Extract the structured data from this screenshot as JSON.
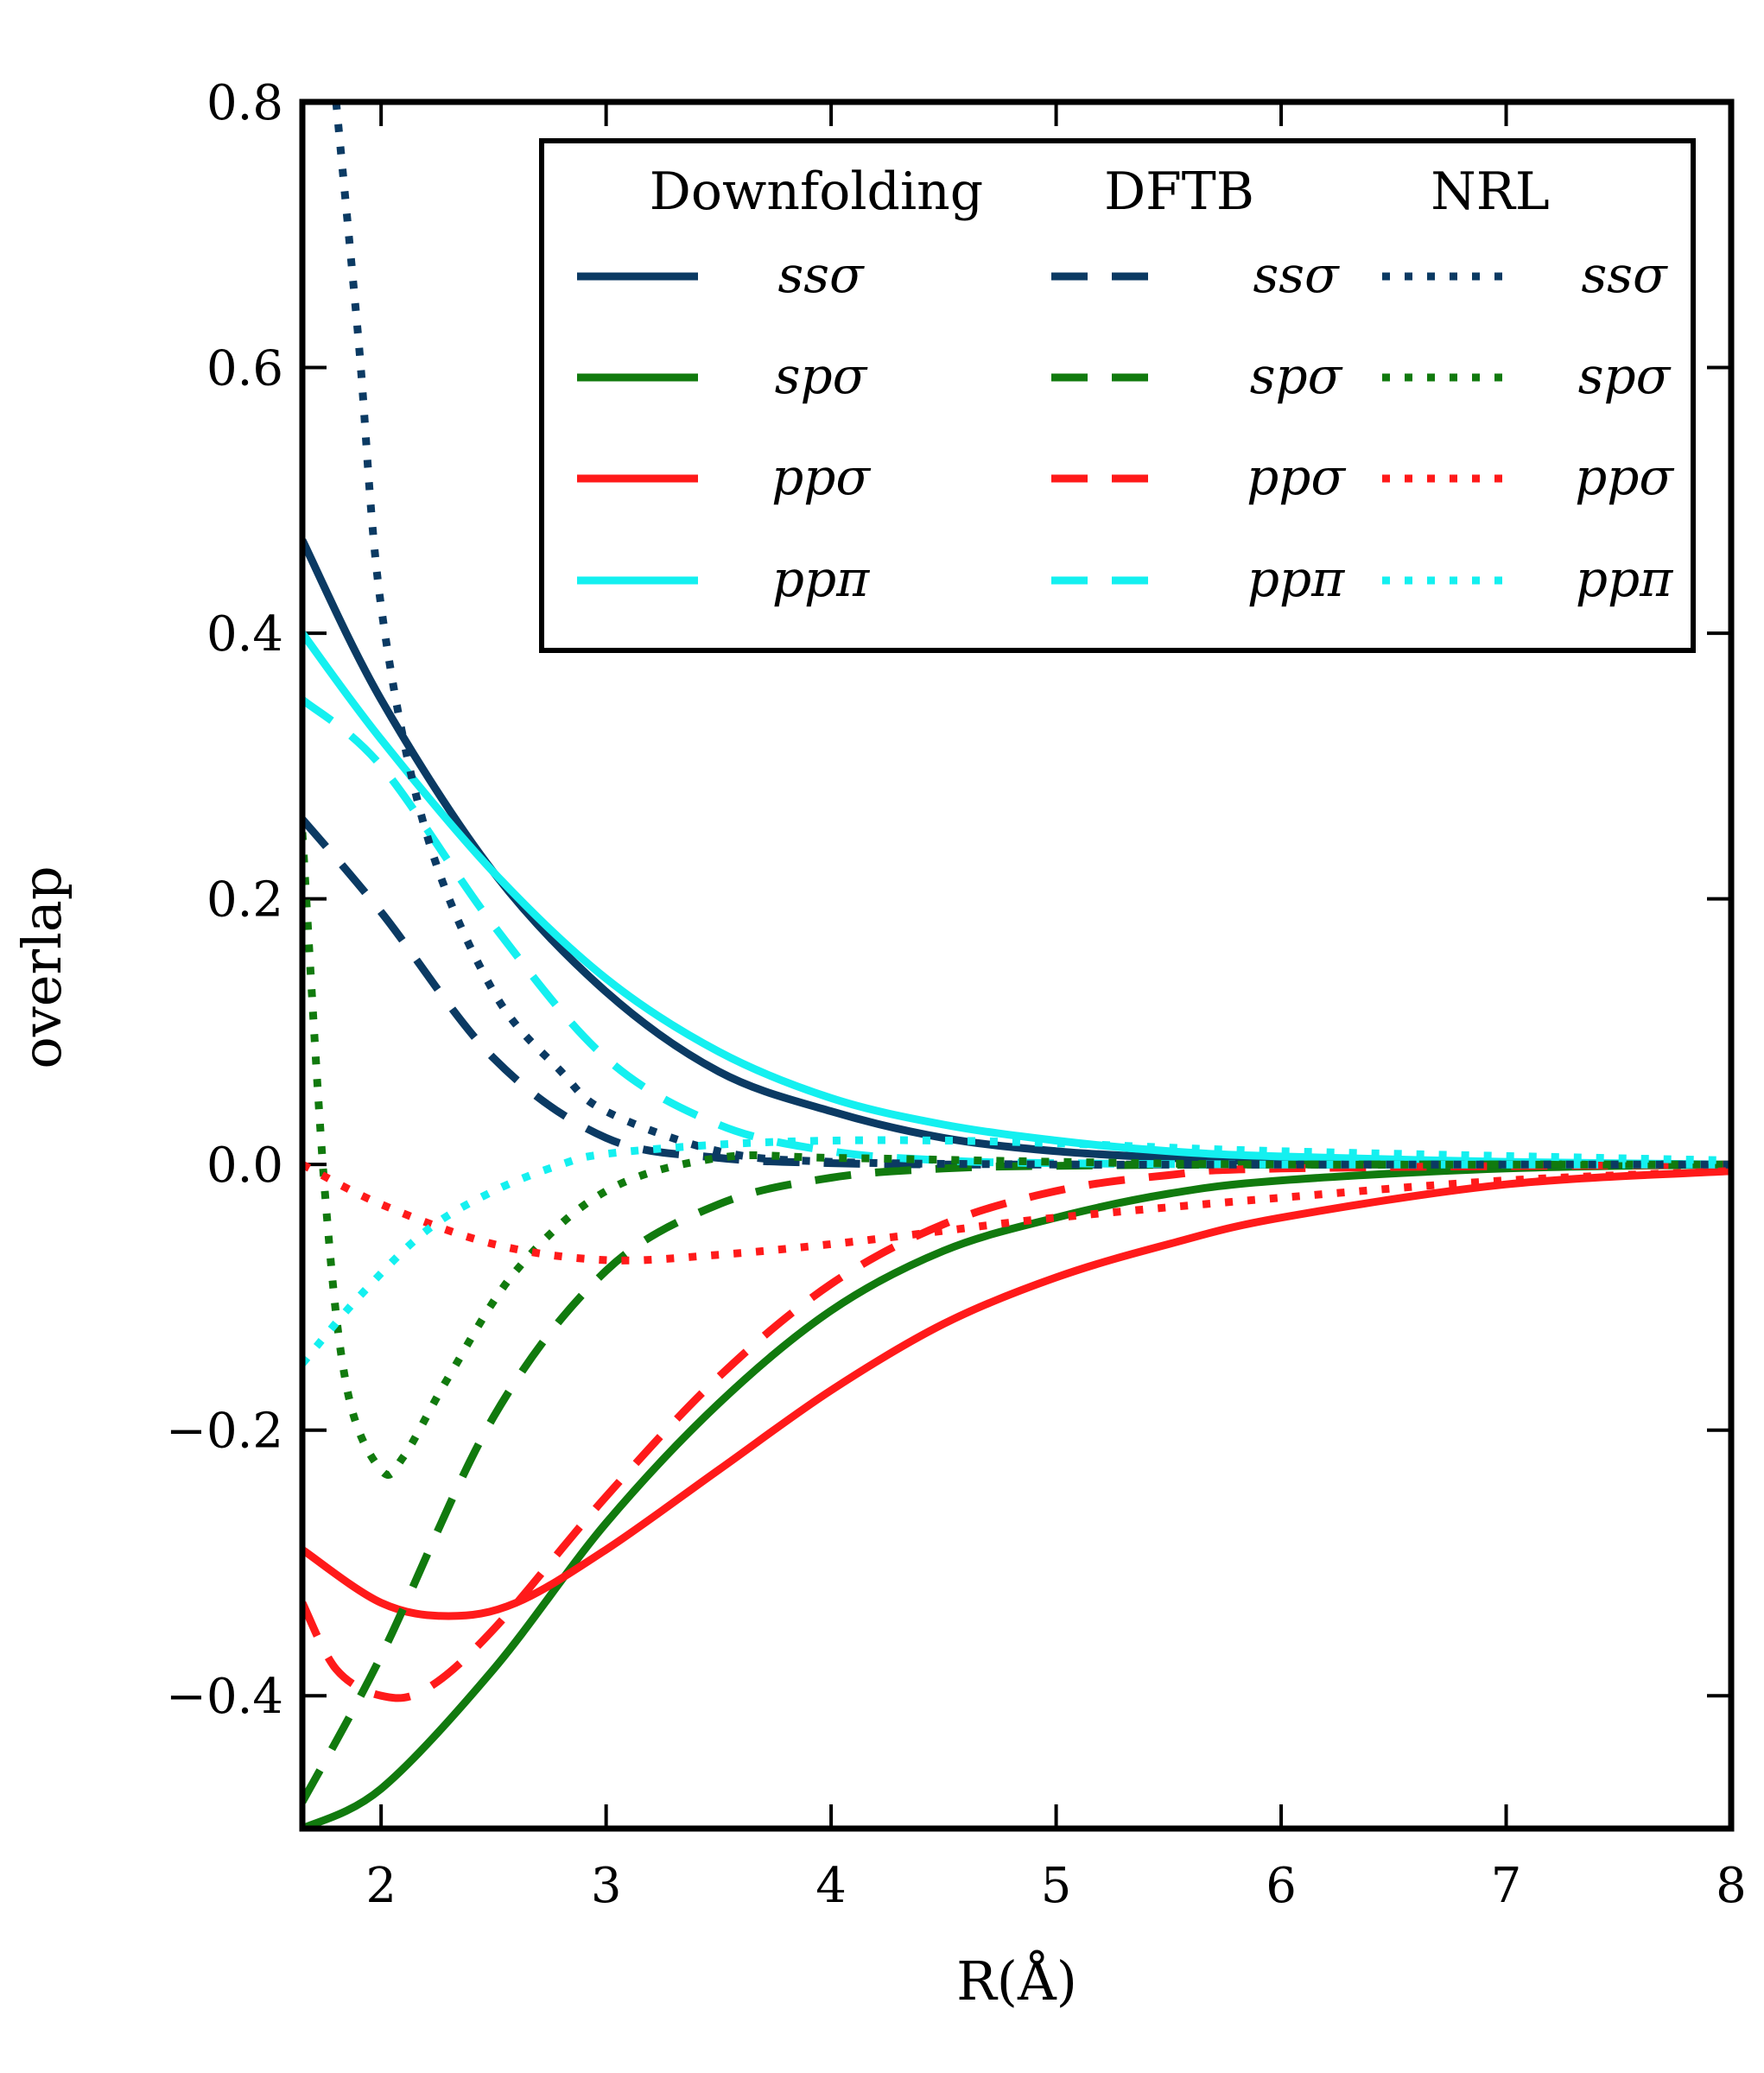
{
  "chart_data": {
    "type": "line",
    "xlabel": "R(Å)",
    "ylabel": "overlap",
    "xlim": [
      1.65,
      8
    ],
    "ylim": [
      -0.5,
      0.8
    ],
    "xticks": [
      "2",
      "3",
      "4",
      "5",
      "6",
      "7",
      "8"
    ],
    "yticks": [
      "0.8",
      "0.6",
      "0.4",
      "0.2",
      "0.0",
      "−0.2",
      "−0.4"
    ],
    "legend_placement": "top-right",
    "legend_groups": [
      "Downfolding",
      "DFTB",
      "NRL"
    ],
    "colors": {
      "ss": "#0b3a63",
      "sp": "#117a0e",
      "pp_sigma": "#ff1a1a",
      "pp_pi": "#14f0f0"
    },
    "series": [
      {
        "name": "ssσ",
        "group": "Downfolding",
        "style": "solid",
        "color": "#0b3a63",
        "x": [
          1.65,
          2.0,
          2.5,
          3.0,
          3.5,
          4.0,
          4.5,
          5.0,
          5.5,
          6.0,
          7.0,
          8.0
        ],
        "y": [
          0.47,
          0.35,
          0.22,
          0.13,
          0.07,
          0.04,
          0.02,
          0.01,
          0.005,
          0.002,
          0.0,
          0.0
        ]
      },
      {
        "name": "spσ",
        "group": "Downfolding",
        "style": "solid",
        "color": "#117a0e",
        "x": [
          1.65,
          2.0,
          2.5,
          3.0,
          3.5,
          4.0,
          4.5,
          5.0,
          5.5,
          6.0,
          7.0,
          8.0
        ],
        "y": [
          -0.5,
          -0.47,
          -0.38,
          -0.27,
          -0.18,
          -0.11,
          -0.065,
          -0.04,
          -0.022,
          -0.012,
          -0.003,
          0.0
        ]
      },
      {
        "name": "ppσ",
        "group": "Downfolding",
        "style": "solid",
        "color": "#ff1a1a",
        "x": [
          1.65,
          2.0,
          2.3,
          2.6,
          3.0,
          3.5,
          4.0,
          4.5,
          5.0,
          5.5,
          6.0,
          7.0,
          8.0
        ],
        "y": [
          -0.29,
          -0.33,
          -0.34,
          -0.33,
          -0.29,
          -0.23,
          -0.17,
          -0.12,
          -0.085,
          -0.06,
          -0.04,
          -0.015,
          -0.005
        ]
      },
      {
        "name": "ppπ",
        "group": "Downfolding",
        "style": "solid",
        "color": "#14f0f0",
        "x": [
          1.65,
          2.0,
          2.5,
          3.0,
          3.5,
          4.0,
          4.5,
          5.0,
          5.5,
          6.0,
          7.0,
          8.0
        ],
        "y": [
          0.4,
          0.32,
          0.22,
          0.14,
          0.085,
          0.05,
          0.03,
          0.018,
          0.01,
          0.006,
          0.002,
          0.0
        ]
      },
      {
        "name": "ssσ",
        "group": "DFTB",
        "style": "dashed",
        "color": "#0b3a63",
        "x": [
          1.65,
          2.0,
          2.5,
          3.0,
          3.5,
          4.0,
          4.5,
          5.0,
          6.0,
          8.0
        ],
        "y": [
          0.26,
          0.19,
          0.08,
          0.02,
          0.005,
          0.001,
          0.0,
          0.0,
          0.0,
          0.0
        ]
      },
      {
        "name": "spσ",
        "group": "DFTB",
        "style": "dashed",
        "color": "#117a0e",
        "x": [
          1.65,
          2.0,
          2.5,
          3.0,
          3.5,
          4.0,
          4.5,
          5.0,
          6.0,
          8.0
        ],
        "y": [
          -0.48,
          -0.37,
          -0.19,
          -0.08,
          -0.03,
          -0.01,
          -0.003,
          -0.001,
          0.0,
          0.0
        ]
      },
      {
        "name": "ppσ",
        "group": "DFTB",
        "style": "dashed",
        "color": "#ff1a1a",
        "x": [
          1.65,
          1.8,
          2.0,
          2.2,
          2.5,
          3.0,
          3.5,
          4.0,
          4.5,
          5.0,
          5.5,
          6.0,
          8.0
        ],
        "y": [
          -0.33,
          -0.38,
          -0.4,
          -0.395,
          -0.35,
          -0.25,
          -0.16,
          -0.09,
          -0.045,
          -0.02,
          -0.008,
          -0.003,
          0.0
        ]
      },
      {
        "name": "ppπ",
        "group": "DFTB",
        "style": "dashed",
        "color": "#14f0f0",
        "x": [
          1.65,
          2.0,
          2.5,
          3.0,
          3.5,
          4.0,
          4.5,
          5.0,
          6.0,
          8.0
        ],
        "y": [
          0.35,
          0.3,
          0.18,
          0.08,
          0.03,
          0.01,
          0.003,
          0.001,
          0.0,
          0.0
        ]
      },
      {
        "name": "ssσ",
        "group": "NRL",
        "style": "dotted",
        "color": "#0b3a63",
        "x": [
          1.8,
          1.9,
          2.0,
          2.2,
          2.5,
          2.8,
          3.0,
          3.5,
          4.0,
          5.0,
          6.0,
          8.0
        ],
        "y": [
          0.8,
          0.62,
          0.42,
          0.25,
          0.13,
          0.07,
          0.04,
          0.01,
          0.002,
          0.0,
          0.0,
          0.0
        ]
      },
      {
        "name": "spσ",
        "group": "NRL",
        "style": "dotted",
        "color": "#117a0e",
        "x": [
          1.65,
          1.75,
          1.85,
          2.0,
          2.1,
          2.3,
          2.6,
          3.0,
          3.5,
          4.0,
          5.0,
          6.0,
          8.0
        ],
        "y": [
          0.25,
          -0.02,
          -0.17,
          -0.23,
          -0.22,
          -0.16,
          -0.08,
          -0.02,
          0.005,
          0.005,
          0.002,
          0.0,
          0.0
        ]
      },
      {
        "name": "ppσ",
        "group": "NRL",
        "style": "dotted",
        "color": "#ff1a1a",
        "x": [
          1.65,
          2.0,
          2.5,
          3.0,
          3.5,
          4.0,
          4.5,
          5.0,
          6.0,
          7.0,
          8.0
        ],
        "y": [
          0.0,
          -0.03,
          -0.06,
          -0.072,
          -0.068,
          -0.06,
          -0.05,
          -0.04,
          -0.025,
          -0.012,
          -0.005
        ]
      },
      {
        "name": "ppπ",
        "group": "NRL",
        "style": "dotted",
        "color": "#14f0f0",
        "x": [
          1.65,
          1.9,
          2.2,
          2.5,
          2.8,
          3.0,
          3.5,
          4.0,
          4.5,
          5.0,
          6.0,
          8.0
        ],
        "y": [
          -0.15,
          -0.1,
          -0.05,
          -0.02,
          0.0,
          0.008,
          0.015,
          0.018,
          0.018,
          0.016,
          0.01,
          0.003
        ]
      }
    ]
  }
}
